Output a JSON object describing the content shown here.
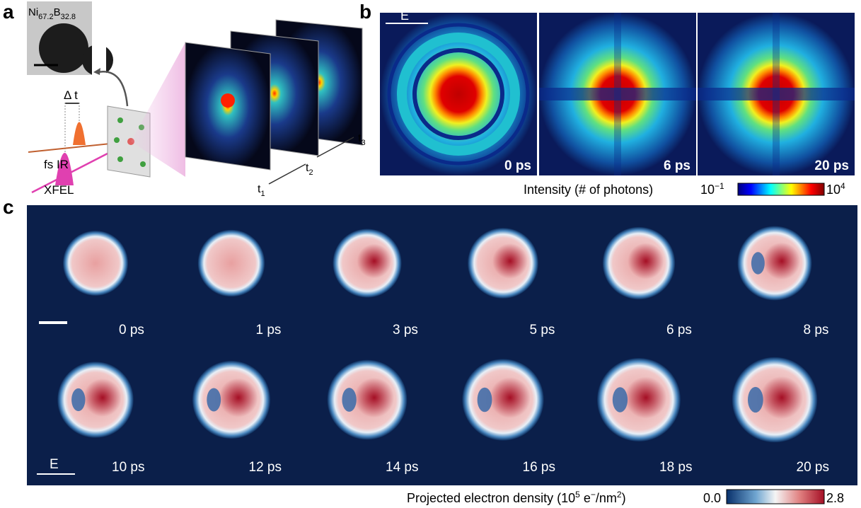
{
  "panel_labels": [
    "a",
    "b",
    "c"
  ],
  "panel_a": {
    "sample": [
      "Ni",
      "67.2",
      "B",
      "32.8"
    ],
    "delay": "Δ t",
    "pump": "fs IR",
    "probe": "XFEL",
    "times": [
      [
        "t",
        "1"
      ],
      [
        "t",
        "2"
      ],
      [
        "t",
        "3"
      ]
    ]
  },
  "panel_b": {
    "field": "E",
    "frames": [
      "0 ps",
      "6 ps",
      "20 ps"
    ],
    "colorbar": {
      "label": "Intensity (# of photons)",
      "min": [
        "10",
        "−1"
      ],
      "max": [
        "10",
        "4"
      ]
    }
  },
  "panel_c": {
    "field": "E",
    "frames": [
      "0 ps",
      "1 ps",
      "3 ps",
      "5 ps",
      "6 ps",
      "8 ps",
      "10 ps",
      "12 ps",
      "14 ps",
      "16 ps",
      "18 ps",
      "20 ps"
    ],
    "colorbar": {
      "label": [
        "Projected electron density (10",
        "5",
        " e",
        "−",
        "/nm",
        "2",
        ")"
      ],
      "min": "0.0",
      "max": "2.8"
    }
  }
}
